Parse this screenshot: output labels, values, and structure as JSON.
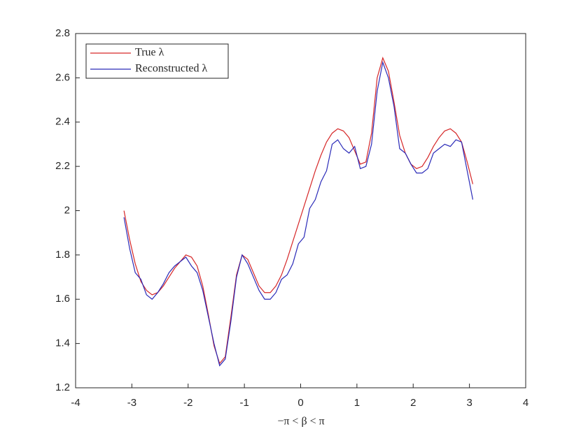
{
  "chart_data": {
    "type": "line",
    "xlabel": "−π < β < π",
    "x": [
      -3.14,
      -3.04,
      -2.94,
      -2.84,
      -2.74,
      -2.64,
      -2.54,
      -2.44,
      -2.34,
      -2.24,
      -2.14,
      -2.04,
      -1.94,
      -1.84,
      -1.74,
      -1.64,
      -1.54,
      -1.44,
      -1.34,
      -1.24,
      -1.14,
      -1.04,
      -0.94,
      -0.84,
      -0.74,
      -0.64,
      -0.54,
      -0.44,
      -0.34,
      -0.24,
      -0.14,
      -0.04,
      0.06,
      0.16,
      0.26,
      0.36,
      0.46,
      0.56,
      0.66,
      0.76,
      0.86,
      0.96,
      1.06,
      1.16,
      1.26,
      1.36,
      1.46,
      1.56,
      1.66,
      1.76,
      1.86,
      1.96,
      2.06,
      2.16,
      2.26,
      2.36,
      2.46,
      2.56,
      2.66,
      2.76,
      2.86,
      2.96,
      3.06
    ],
    "series": [
      {
        "name": "True λ",
        "color": "#d62728",
        "values": [
          2.0,
          1.87,
          1.76,
          1.68,
          1.64,
          1.62,
          1.63,
          1.66,
          1.7,
          1.74,
          1.77,
          1.8,
          1.79,
          1.75,
          1.66,
          1.53,
          1.39,
          1.31,
          1.34,
          1.52,
          1.71,
          1.8,
          1.78,
          1.72,
          1.66,
          1.63,
          1.63,
          1.66,
          1.71,
          1.78,
          1.86,
          1.94,
          2.02,
          2.1,
          2.18,
          2.25,
          2.31,
          2.35,
          2.37,
          2.36,
          2.33,
          2.27,
          2.21,
          2.22,
          2.35,
          2.6,
          2.69,
          2.63,
          2.49,
          2.34,
          2.26,
          2.21,
          2.19,
          2.2,
          2.24,
          2.29,
          2.33,
          2.36,
          2.37,
          2.35,
          2.31,
          2.22,
          2.12
        ]
      },
      {
        "name": "Reconstructed λ",
        "color": "#2a2ab8",
        "values": [
          1.97,
          1.83,
          1.72,
          1.69,
          1.62,
          1.6,
          1.63,
          1.67,
          1.72,
          1.75,
          1.77,
          1.79,
          1.75,
          1.72,
          1.64,
          1.52,
          1.4,
          1.3,
          1.33,
          1.5,
          1.7,
          1.8,
          1.76,
          1.7,
          1.64,
          1.6,
          1.6,
          1.63,
          1.69,
          1.71,
          1.76,
          1.85,
          1.88,
          2.01,
          2.05,
          2.13,
          2.18,
          2.3,
          2.32,
          2.28,
          2.26,
          2.29,
          2.19,
          2.2,
          2.3,
          2.54,
          2.67,
          2.6,
          2.47,
          2.28,
          2.26,
          2.21,
          2.17,
          2.17,
          2.19,
          2.26,
          2.28,
          2.3,
          2.29,
          2.32,
          2.31,
          2.18,
          2.05
        ]
      }
    ],
    "xlim": [
      -4,
      4
    ],
    "xticks": [
      -4,
      -3,
      -2,
      -1,
      0,
      1,
      2,
      3,
      4
    ],
    "ylim": [
      1.2,
      2.8
    ],
    "yticks": [
      1.2,
      1.4,
      1.6,
      1.8,
      2,
      2.2,
      2.4,
      2.6,
      2.8
    ],
    "legend": "upper-left"
  }
}
